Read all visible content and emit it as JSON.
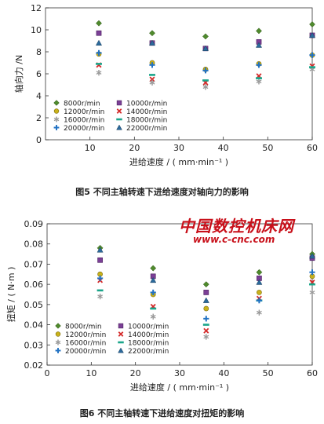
{
  "chart_data": [
    {
      "type": "scatter",
      "xlabel": "进给速度 / ( mm·min⁻¹ )",
      "ylabel": "轴向力 /N",
      "xlim": [
        0,
        60
      ],
      "ylim": [
        0,
        12
      ],
      "xticks": [
        10,
        20,
        30,
        40,
        50,
        60
      ],
      "yticks": [
        0,
        2,
        4,
        6,
        8,
        10,
        12
      ],
      "legend": "lower-left",
      "x": [
        12,
        24,
        36,
        48,
        60
      ],
      "series": [
        {
          "name": "8000r/min",
          "marker": "diamond",
          "color": "#4f8a2d",
          "values": [
            10.6,
            9.7,
            9.4,
            9.9,
            10.5
          ]
        },
        {
          "name": "10000r/min",
          "marker": "square",
          "color": "#7b3f96",
          "values": [
            9.7,
            8.8,
            8.3,
            8.9,
            9.5
          ]
        },
        {
          "name": "12000r/min",
          "marker": "circle",
          "color": "#c9b21a",
          "values": [
            7.8,
            7.0,
            6.4,
            6.9,
            7.7
          ]
        },
        {
          "name": "14000r/min",
          "marker": "x",
          "color": "#d42a2a",
          "values": [
            6.8,
            5.5,
            5.2,
            5.8,
            6.7
          ]
        },
        {
          "name": "16000r/min",
          "marker": "asterisk",
          "color": "#9a9a9a",
          "values": [
            6.1,
            5.2,
            4.8,
            5.3,
            6.4
          ]
        },
        {
          "name": "18000r/min",
          "marker": "dash",
          "color": "#1aa58a",
          "values": [
            6.9,
            5.9,
            5.4,
            5.6,
            6.6
          ]
        },
        {
          "name": "20000r/min",
          "marker": "plus",
          "color": "#2272c3",
          "values": [
            7.9,
            6.8,
            6.3,
            6.8,
            7.7
          ]
        },
        {
          "name": "22000r/min",
          "marker": "triangle",
          "color": "#2c6a9c",
          "values": [
            8.8,
            8.8,
            8.3,
            8.6,
            9.5
          ]
        }
      ],
      "caption": "图5   不同主轴转速下进给速度对轴向力的影响"
    },
    {
      "type": "scatter",
      "xlabel": "进给速度 / ( mm·min⁻¹ )",
      "ylabel": "扭矩 / ( N·m )",
      "xlim": [
        0,
        60
      ],
      "ylim": [
        0.02,
        0.09
      ],
      "xticks": [
        0,
        10,
        20,
        30,
        40,
        50,
        60
      ],
      "yticks": [
        0.02,
        0.03,
        0.04,
        0.05,
        0.06,
        0.07,
        0.08,
        0.09
      ],
      "legend": "lower-left",
      "x": [
        12,
        24,
        36,
        48,
        60
      ],
      "series": [
        {
          "name": "8000r/min",
          "marker": "diamond",
          "color": "#4f8a2d",
          "values": [
            0.078,
            0.068,
            0.06,
            0.066,
            0.075
          ]
        },
        {
          "name": "10000r/min",
          "marker": "square",
          "color": "#7b3f96",
          "values": [
            0.072,
            0.064,
            0.056,
            0.063,
            0.073
          ]
        },
        {
          "name": "12000r/min",
          "marker": "circle",
          "color": "#c9b21a",
          "values": [
            0.065,
            0.055,
            0.048,
            0.056,
            0.064
          ]
        },
        {
          "name": "14000r/min",
          "marker": "x",
          "color": "#d42a2a",
          "values": [
            0.062,
            0.049,
            0.037,
            0.053,
            0.061
          ]
        },
        {
          "name": "16000r/min",
          "marker": "asterisk",
          "color": "#9a9a9a",
          "values": [
            0.054,
            0.044,
            0.034,
            0.046,
            0.056
          ]
        },
        {
          "name": "18000r/min",
          "marker": "dash",
          "color": "#1aa58a",
          "values": [
            0.057,
            0.048,
            0.04,
            0.052,
            0.06
          ]
        },
        {
          "name": "20000r/min",
          "marker": "plus",
          "color": "#2272c3",
          "values": [
            0.063,
            0.056,
            0.043,
            0.052,
            0.066
          ]
        },
        {
          "name": "22000r/min",
          "marker": "triangle",
          "color": "#2c6a9c",
          "values": [
            0.077,
            0.062,
            0.052,
            0.061,
            0.074
          ]
        }
      ],
      "caption": "图6   不同主轴转速下进给速度对扭矩的影响"
    }
  ],
  "watermark": {
    "logo_text": "中国数控机床网",
    "url": "www.c-cnc.com"
  }
}
